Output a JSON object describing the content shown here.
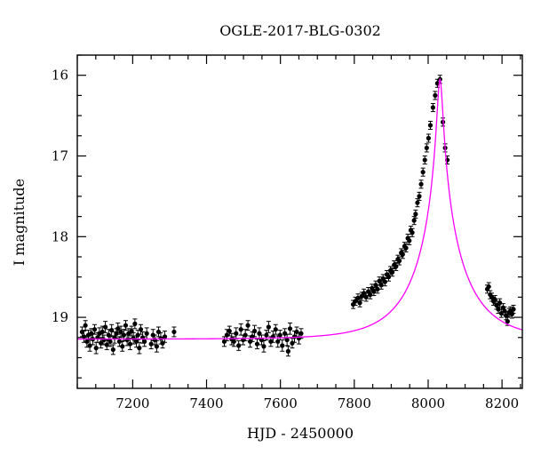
{
  "chart_data": {
    "type": "scatter",
    "title": "OGLE-2017-BLG-0302",
    "xlabel": "HJD - 2450000",
    "ylabel": "I magnitude",
    "xlim": [
      7050,
      8255
    ],
    "ylim": [
      19.88,
      15.75
    ],
    "y_inverted": true,
    "grid": false,
    "x_major_ticks": [
      7200,
      7400,
      7600,
      7800,
      8000,
      8200
    ],
    "y_major_ticks": [
      16,
      17,
      18,
      19
    ],
    "colors": {
      "data": "#000000",
      "model": "#ff00ff",
      "axes": "#000000"
    },
    "model": {
      "name": "",
      "baseline_mag": 19.27,
      "peak_time": 8032,
      "peak_mag": 16.05,
      "einstein_time_days": 140,
      "u0": 0.0508,
      "blending_fraction": 1.0
    },
    "series": [
      {
        "name": "",
        "points": [
          [
            7063,
            19.18,
            0.06
          ],
          [
            7068,
            19.24,
            0.07
          ],
          [
            7072,
            19.1,
            0.06
          ],
          [
            7076,
            19.3,
            0.07
          ],
          [
            7080,
            19.22,
            0.06
          ],
          [
            7084,
            19.35,
            0.07
          ],
          [
            7088,
            19.2,
            0.06
          ],
          [
            7092,
            19.27,
            0.07
          ],
          [
            7097,
            19.15,
            0.06
          ],
          [
            7101,
            19.38,
            0.07
          ],
          [
            7105,
            19.25,
            0.06
          ],
          [
            7110,
            19.2,
            0.07
          ],
          [
            7114,
            19.32,
            0.06
          ],
          [
            7118,
            19.18,
            0.07
          ],
          [
            7122,
            19.28,
            0.06
          ],
          [
            7126,
            19.12,
            0.07
          ],
          [
            7130,
            19.34,
            0.06
          ],
          [
            7135,
            19.22,
            0.07
          ],
          [
            7139,
            19.3,
            0.06
          ],
          [
            7143,
            19.16,
            0.07
          ],
          [
            7147,
            19.4,
            0.06
          ],
          [
            7151,
            19.25,
            0.07
          ],
          [
            7156,
            19.2,
            0.06
          ],
          [
            7160,
            19.14,
            0.07
          ],
          [
            7164,
            19.3,
            0.06
          ],
          [
            7168,
            19.18,
            0.07
          ],
          [
            7172,
            19.36,
            0.06
          ],
          [
            7176,
            19.22,
            0.07
          ],
          [
            7181,
            19.1,
            0.06
          ],
          [
            7185,
            19.28,
            0.07
          ],
          [
            7189,
            19.2,
            0.06
          ],
          [
            7193,
            19.33,
            0.07
          ],
          [
            7197,
            19.17,
            0.06
          ],
          [
            7202,
            19.26,
            0.07
          ],
          [
            7206,
            19.08,
            0.06
          ],
          [
            7210,
            19.3,
            0.07
          ],
          [
            7214,
            19.22,
            0.06
          ],
          [
            7218,
            19.38,
            0.07
          ],
          [
            7222,
            19.15,
            0.06
          ],
          [
            7227,
            19.25,
            0.07
          ],
          [
            7232,
            19.3,
            0.06
          ],
          [
            7238,
            19.2,
            0.07
          ],
          [
            7250,
            19.33,
            0.06
          ],
          [
            7255,
            19.22,
            0.07
          ],
          [
            7260,
            19.28,
            0.06
          ],
          [
            7265,
            19.36,
            0.07
          ],
          [
            7270,
            19.18,
            0.06
          ],
          [
            7276,
            19.26,
            0.07
          ],
          [
            7281,
            19.32,
            0.06
          ],
          [
            7287,
            19.24,
            0.07
          ],
          [
            7312,
            19.18,
            0.06
          ],
          [
            7448,
            19.3,
            0.06
          ],
          [
            7455,
            19.22,
            0.07
          ],
          [
            7462,
            19.17,
            0.06
          ],
          [
            7468,
            19.27,
            0.07
          ],
          [
            7474,
            19.3,
            0.06
          ],
          [
            7480,
            19.2,
            0.07
          ],
          [
            7487,
            19.35,
            0.06
          ],
          [
            7493,
            19.15,
            0.07
          ],
          [
            7499,
            19.28,
            0.06
          ],
          [
            7505,
            19.22,
            0.07
          ],
          [
            7512,
            19.1,
            0.06
          ],
          [
            7518,
            19.3,
            0.07
          ],
          [
            7524,
            19.24,
            0.06
          ],
          [
            7530,
            19.17,
            0.07
          ],
          [
            7537,
            19.33,
            0.06
          ],
          [
            7543,
            19.2,
            0.07
          ],
          [
            7549,
            19.28,
            0.06
          ],
          [
            7555,
            19.36,
            0.07
          ],
          [
            7562,
            19.22,
            0.06
          ],
          [
            7568,
            19.12,
            0.07
          ],
          [
            7574,
            19.3,
            0.06
          ],
          [
            7580,
            19.24,
            0.07
          ],
          [
            7587,
            19.15,
            0.06
          ],
          [
            7593,
            19.3,
            0.07
          ],
          [
            7599,
            19.22,
            0.06
          ],
          [
            7605,
            19.35,
            0.07
          ],
          [
            7612,
            19.2,
            0.06
          ],
          [
            7618,
            19.28,
            0.07
          ],
          [
            7621,
            19.42,
            0.06
          ],
          [
            7626,
            19.14,
            0.07
          ],
          [
            7632,
            19.32,
            0.06
          ],
          [
            7638,
            19.24,
            0.07
          ],
          [
            7644,
            19.18,
            0.06
          ],
          [
            7650,
            19.26,
            0.07
          ],
          [
            7656,
            19.2,
            0.06
          ],
          [
            7797,
            18.84,
            0.05
          ],
          [
            7803,
            18.8,
            0.05
          ],
          [
            7810,
            18.76,
            0.05
          ],
          [
            7815,
            18.82,
            0.05
          ],
          [
            7820,
            18.74,
            0.05
          ],
          [
            7826,
            18.7,
            0.05
          ],
          [
            7832,
            18.75,
            0.05
          ],
          [
            7838,
            18.68,
            0.05
          ],
          [
            7843,
            18.72,
            0.05
          ],
          [
            7848,
            18.64,
            0.05
          ],
          [
            7853,
            18.68,
            0.05
          ],
          [
            7858,
            18.6,
            0.05
          ],
          [
            7863,
            18.65,
            0.05
          ],
          [
            7868,
            18.55,
            0.05
          ],
          [
            7873,
            18.6,
            0.05
          ],
          [
            7878,
            18.52,
            0.05
          ],
          [
            7883,
            18.56,
            0.05
          ],
          [
            7888,
            18.47,
            0.05
          ],
          [
            7893,
            18.5,
            0.05
          ],
          [
            7898,
            18.42,
            0.05
          ],
          [
            7903,
            18.44,
            0.05
          ],
          [
            7908,
            18.35,
            0.05
          ],
          [
            7913,
            18.37,
            0.05
          ],
          [
            7918,
            18.28,
            0.05
          ],
          [
            7922,
            18.3,
            0.05
          ],
          [
            7927,
            18.2,
            0.05
          ],
          [
            7931,
            18.22,
            0.05
          ],
          [
            7936,
            18.12,
            0.05
          ],
          [
            7940,
            18.14,
            0.05
          ],
          [
            7945,
            18.02,
            0.05
          ],
          [
            7949,
            18.05,
            0.05
          ],
          [
            7953,
            17.92,
            0.05
          ],
          [
            7957,
            17.95,
            0.05
          ],
          [
            7962,
            17.8,
            0.05
          ],
          [
            7966,
            17.72,
            0.05
          ],
          [
            7971,
            17.58,
            0.05
          ],
          [
            7976,
            17.5,
            0.05
          ],
          [
            7981,
            17.35,
            0.05
          ],
          [
            7986,
            17.2,
            0.05
          ],
          [
            7991,
            17.05,
            0.05
          ],
          [
            7996,
            16.9,
            0.05
          ],
          [
            8001,
            16.78,
            0.05
          ],
          [
            8006,
            16.62,
            0.05
          ],
          [
            8013,
            16.4,
            0.05
          ],
          [
            8019,
            16.25,
            0.05
          ],
          [
            8025,
            16.1,
            0.05
          ],
          [
            8032,
            16.05,
            0.05
          ],
          [
            8040,
            16.58,
            0.05
          ],
          [
            8046,
            16.9,
            0.05
          ],
          [
            8052,
            17.05,
            0.05
          ],
          [
            8160,
            18.65,
            0.05
          ],
          [
            8164,
            18.62,
            0.05
          ],
          [
            8168,
            18.72,
            0.05
          ],
          [
            8172,
            18.75,
            0.05
          ],
          [
            8177,
            18.8,
            0.05
          ],
          [
            8181,
            18.78,
            0.05
          ],
          [
            8185,
            18.85,
            0.05
          ],
          [
            8190,
            18.9,
            0.05
          ],
          [
            8194,
            18.82,
            0.05
          ],
          [
            8198,
            18.95,
            0.05
          ],
          [
            8203,
            18.88,
            0.05
          ],
          [
            8207,
            18.92,
            0.05
          ],
          [
            8211,
            18.98,
            0.05
          ],
          [
            8215,
            19.05,
            0.05
          ],
          [
            8219,
            18.94,
            0.05
          ],
          [
            8223,
            18.92,
            0.05
          ],
          [
            8227,
            18.96,
            0.05
          ],
          [
            8231,
            18.9,
            0.05
          ]
        ]
      }
    ]
  }
}
